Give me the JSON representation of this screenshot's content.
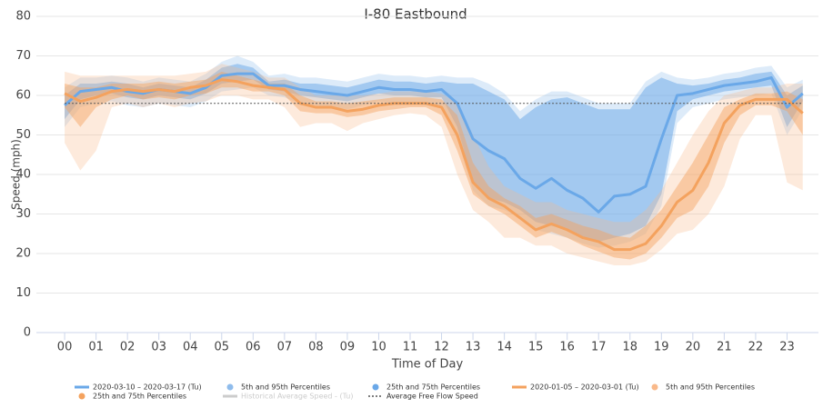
{
  "chart_data": {
    "type": "line",
    "title": "I-80 Eastbound",
    "xlabel": "Time of Day",
    "ylabel": "Speed (mph)",
    "x": [
      0,
      0.5,
      1,
      1.5,
      2,
      2.5,
      3,
      3.5,
      4,
      4.5,
      5,
      5.5,
      6,
      6.5,
      7,
      7.5,
      8,
      8.5,
      9,
      9.5,
      10,
      10.5,
      11,
      11.5,
      12,
      12.5,
      13,
      13.5,
      14,
      14.5,
      15,
      15.5,
      16,
      16.5,
      17,
      17.5,
      18,
      18.5,
      19,
      19.5,
      20,
      20.5,
      21,
      21.5,
      22,
      22.5,
      23,
      23.5
    ],
    "xlim": [
      -0.9,
      24
    ],
    "ylim": [
      0,
      80
    ],
    "xticks": [
      {
        "value": 0,
        "label": "00"
      },
      {
        "value": 1,
        "label": "01"
      },
      {
        "value": 2,
        "label": "02"
      },
      {
        "value": 3,
        "label": "03"
      },
      {
        "value": 4,
        "label": "04"
      },
      {
        "value": 5,
        "label": "05"
      },
      {
        "value": 6,
        "label": "06"
      },
      {
        "value": 7,
        "label": "07"
      },
      {
        "value": 8,
        "label": "08"
      },
      {
        "value": 9,
        "label": "09"
      },
      {
        "value": 10,
        "label": "10"
      },
      {
        "value": 11,
        "label": "11"
      },
      {
        "value": 12,
        "label": "12"
      },
      {
        "value": 13,
        "label": "13"
      },
      {
        "value": 14,
        "label": "14"
      },
      {
        "value": 15,
        "label": "15"
      },
      {
        "value": 16,
        "label": "16"
      },
      {
        "value": 17,
        "label": "17"
      },
      {
        "value": 18,
        "label": "18"
      },
      {
        "value": 19,
        "label": "19"
      },
      {
        "value": 20,
        "label": "20"
      },
      {
        "value": 21,
        "label": "21"
      },
      {
        "value": 22,
        "label": "22"
      },
      {
        "value": 23,
        "label": "23"
      }
    ],
    "yticks": [
      0,
      10,
      20,
      30,
      40,
      50,
      60,
      70,
      80
    ],
    "grid": true,
    "series": [
      {
        "name": "2020-03-10 – 2020-03-17 (Tu)",
        "kind": "line",
        "color": "#6aa8e8",
        "values": [
          57.5,
          61,
          61.5,
          62,
          61,
          60.5,
          61.5,
          61,
          60.5,
          62,
          65,
          65.5,
          65.5,
          62.5,
          62.5,
          61.5,
          61,
          60.5,
          60,
          61,
          62,
          61.5,
          61.5,
          61,
          61.5,
          58,
          49,
          46,
          44,
          39,
          36.5,
          39,
          36,
          34,
          30.5,
          34.5,
          35,
          37,
          49,
          60,
          60.5,
          61.5,
          62.5,
          63,
          63.5,
          64.5,
          57,
          60.5
        ]
      },
      {
        "name": "5th and 95th Percentiles",
        "kind": "band",
        "color": "#8fbcec",
        "opacity": 0.3,
        "low": [
          52,
          57,
          58,
          58.5,
          57.5,
          57,
          58,
          57.5,
          57,
          58.5,
          61,
          61.5,
          62,
          60,
          59.5,
          58,
          57.5,
          57,
          56.5,
          57.5,
          58.5,
          58,
          58,
          57.5,
          57,
          49,
          36,
          32,
          31,
          29,
          26,
          25,
          24,
          22.5,
          21.5,
          22,
          23,
          25,
          32,
          53,
          57,
          58,
          59,
          59.5,
          60,
          60.5,
          50,
          56.5
        ],
        "high": [
          62,
          64.5,
          64.5,
          65,
          64.5,
          63.5,
          64.5,
          64,
          63.5,
          65.5,
          68.5,
          70,
          68.5,
          65,
          65.5,
          64.5,
          64.5,
          64,
          63.5,
          64.5,
          65.5,
          65,
          65,
          64.5,
          65,
          64.5,
          64.5,
          63,
          60.5,
          56,
          59,
          61,
          61,
          59.5,
          58,
          58,
          58,
          63.5,
          66,
          64.5,
          64,
          64.5,
          65.5,
          66,
          67,
          67.5,
          62,
          64
        ]
      },
      {
        "name": "25th and 75th Percentiles",
        "kind": "band",
        "color": "#6aa8e8",
        "opacity": 0.5,
        "low": [
          54,
          59,
          60,
          60.5,
          59.5,
          59,
          60,
          59.5,
          59,
          60.5,
          63,
          63.5,
          64,
          61.5,
          61,
          60,
          59.5,
          59,
          58.5,
          59.5,
          60.5,
          60,
          60,
          59.5,
          59.5,
          52,
          38,
          34,
          33,
          31,
          28,
          27,
          26,
          24,
          23,
          24,
          25,
          27,
          35,
          56,
          59,
          60,
          61,
          61.5,
          62,
          62.5,
          52,
          58.5
        ],
        "high": [
          60,
          63,
          63,
          63.5,
          63,
          62,
          63,
          62.5,
          62,
          64,
          67,
          68,
          67,
          63.5,
          64,
          63,
          63,
          62.5,
          62,
          63,
          64,
          63.5,
          63.5,
          63,
          63.5,
          63,
          63,
          61,
          59,
          54,
          57,
          59,
          59.5,
          58,
          56.5,
          56.5,
          56.5,
          62,
          64.5,
          63,
          62.5,
          63,
          64,
          64.5,
          65.5,
          66,
          60,
          62.5
        ]
      },
      {
        "name": "2020-01-05 – 2020-03-01 (Tu)",
        "kind": "line",
        "color": "#f4a25e",
        "values": [
          60.5,
          58.5,
          59.5,
          61,
          61.5,
          61,
          61.5,
          61,
          62,
          62.5,
          64,
          63.5,
          62.5,
          62,
          61.5,
          58,
          57,
          57,
          56,
          56.5,
          57.5,
          58,
          58,
          58,
          57,
          50,
          38,
          34,
          32,
          29,
          26,
          27.5,
          26,
          24,
          23,
          21,
          21,
          22.5,
          27,
          33,
          36,
          43,
          53,
          57.5,
          59,
          59,
          59,
          55.5
        ]
      },
      {
        "name": "5th and 95th Percentiles",
        "kind": "band",
        "color": "#f9b98a",
        "opacity": 0.3,
        "low": [
          48,
          41,
          46,
          57,
          58,
          57,
          58,
          57,
          58,
          58.5,
          60,
          60,
          59,
          59,
          57,
          52,
          53,
          53,
          51,
          53,
          54,
          55,
          55.5,
          55,
          52,
          40,
          31,
          28,
          24,
          24,
          22,
          22,
          20,
          19,
          18,
          17,
          17,
          18,
          21,
          25,
          26,
          30,
          37,
          49,
          55,
          55,
          38,
          36
        ],
        "high": [
          66,
          65,
          65,
          65,
          65,
          65,
          65,
          65,
          65.5,
          66,
          68,
          67,
          66,
          64.5,
          64.5,
          62,
          60,
          60,
          60,
          60,
          60.5,
          61,
          61,
          61,
          60.5,
          58,
          50,
          42,
          37,
          35,
          33,
          33,
          31,
          30,
          29,
          28,
          28,
          31,
          36,
          43,
          50,
          56,
          60,
          61,
          62,
          62,
          63,
          63
        ]
      },
      {
        "name": "25th and 75th Percentiles",
        "kind": "band",
        "color": "#f4a25e",
        "opacity": 0.45,
        "low": [
          57,
          52,
          57,
          59,
          60,
          59,
          59.5,
          59,
          60,
          60.5,
          62,
          62,
          61,
          61,
          60,
          56,
          55.5,
          55.5,
          54.5,
          55,
          56,
          56.5,
          57,
          57,
          55,
          46,
          35,
          32,
          30,
          27,
          24,
          25.5,
          24,
          22,
          20.5,
          19,
          18.5,
          20,
          24,
          29,
          31,
          37,
          48,
          55,
          57.5,
          57.5,
          56,
          50
        ],
        "high": [
          63,
          62,
          62,
          63,
          63,
          63,
          63.5,
          63,
          63.5,
          64,
          66,
          65,
          64,
          63,
          63,
          60,
          58.5,
          58.5,
          58,
          58.5,
          59,
          59.5,
          59.5,
          59.5,
          59,
          55,
          43,
          37,
          34,
          32,
          29,
          30,
          28.5,
          27,
          26,
          24.5,
          24,
          27,
          31,
          37,
          43,
          50,
          57,
          59,
          60.5,
          60.5,
          61,
          59
        ]
      },
      {
        "name": "Historical Average Speed - (Tu)",
        "kind": "hidden",
        "color": "#cccccc"
      },
      {
        "name": "Average Free Flow Speed",
        "kind": "reference",
        "color": "#555555",
        "value": 58
      }
    ]
  }
}
